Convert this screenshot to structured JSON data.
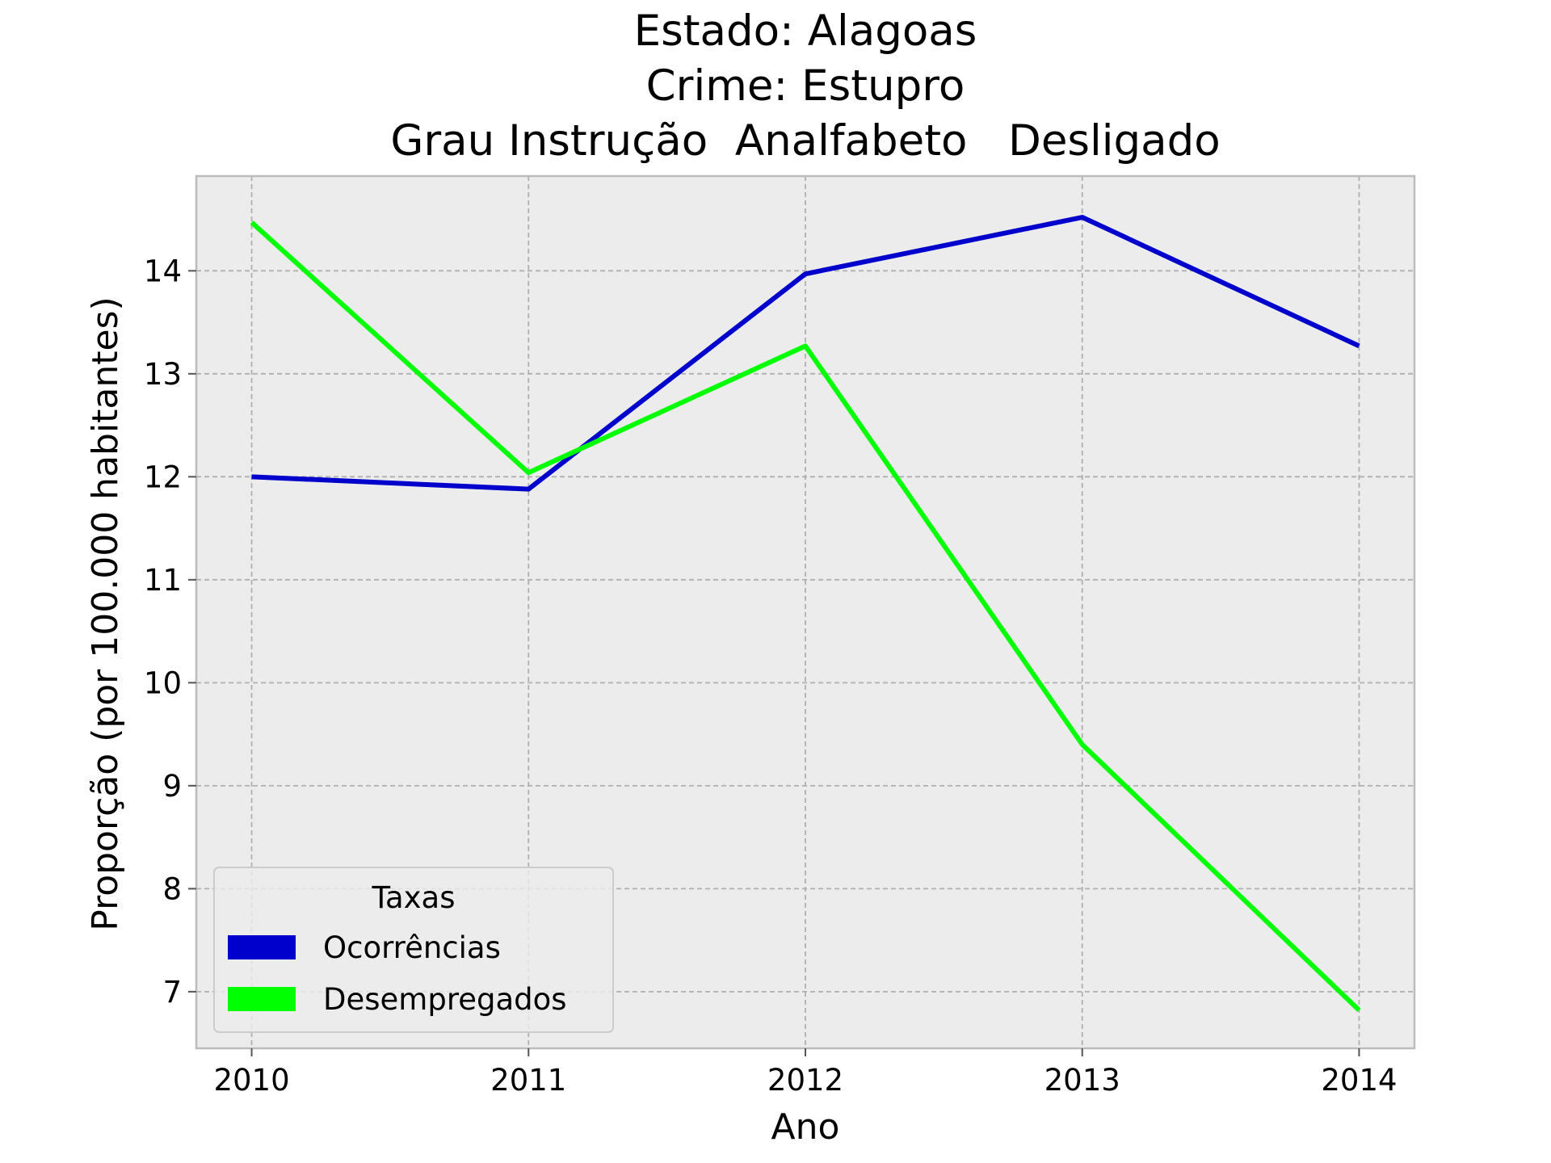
{
  "chart_data": {
    "type": "line",
    "title_lines": [
      "Estado: Alagoas",
      "Crime: Estupro",
      "Grau Instrução  Analfabeto   Desligado"
    ],
    "xlabel": "Ano",
    "ylabel": "Proporção (por 100.000 habitantes)",
    "x": [
      2010,
      2011,
      2012,
      2013,
      2014
    ],
    "x_tick_labels": [
      "2010",
      "2011",
      "2012",
      "2013",
      "2014"
    ],
    "y_ticks": [
      7,
      8,
      9,
      10,
      11,
      12,
      13,
      14
    ],
    "y_tick_labels": [
      "7",
      "8",
      "9",
      "10",
      "11",
      "12",
      "13",
      "14"
    ],
    "xlim": [
      2009.8,
      2014.2
    ],
    "ylim": [
      6.45,
      14.92
    ],
    "grid": true,
    "legend": {
      "title": "Taxas",
      "placement": "lower-left"
    },
    "series": [
      {
        "name": "Ocorrências",
        "color": "#0000cc",
        "values": [
          12.0,
          11.88,
          13.97,
          14.52,
          13.27
        ]
      },
      {
        "name": "Desempregados",
        "color": "#00ff00",
        "values": [
          14.47,
          12.04,
          13.27,
          9.4,
          6.82
        ]
      }
    ],
    "colors": {
      "plot_background": "#ececec",
      "grid": "#b0b0b0",
      "frame": "#bcbcbc"
    }
  }
}
